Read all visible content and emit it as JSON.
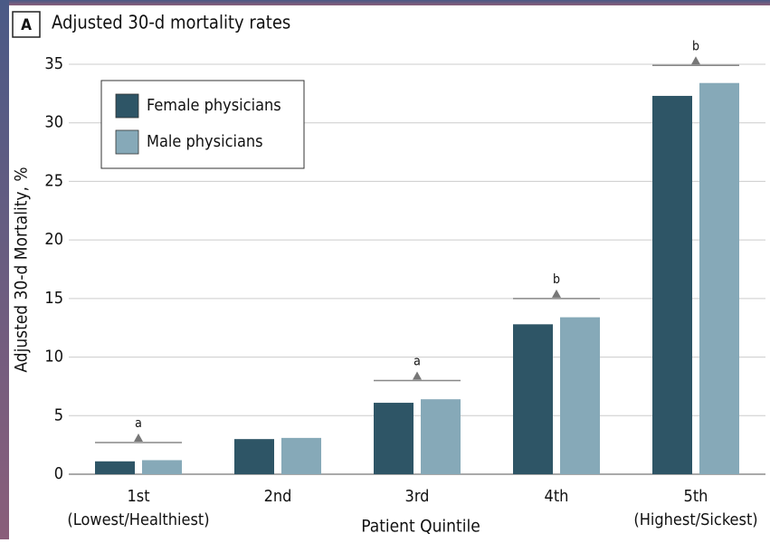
{
  "chart_data": {
    "type": "bar",
    "panel_label": "A",
    "title": "Adjusted 30-d mortality rates",
    "ylabel": "Adjusted 30-d Mortality, %",
    "xlabel": "Patient Quintile",
    "categories": [
      "1st",
      "2nd",
      "3rd",
      "4th",
      "5th"
    ],
    "category_notes": [
      "(Lowest/Healthiest)",
      null,
      null,
      null,
      "(Highest/Sickest)"
    ],
    "series": [
      {
        "name": "Female physicians",
        "color": "#2e5566",
        "values": [
          1.1,
          3.0,
          6.1,
          12.8,
          32.3
        ]
      },
      {
        "name": "Male physicians",
        "color": "#86a9b8",
        "values": [
          1.2,
          3.1,
          6.4,
          13.4,
          33.4
        ]
      }
    ],
    "annotations": [
      {
        "x": "1st",
        "y": 2.7,
        "label": "a"
      },
      {
        "x": "3rd",
        "y": 8.0,
        "label": "a"
      },
      {
        "x": "4th",
        "y": 15.0,
        "label": "b"
      },
      {
        "x": "5th",
        "y": 34.9,
        "label": "b"
      }
    ],
    "ylim": [
      0,
      35
    ],
    "yticks": [
      0,
      5,
      10,
      15,
      20,
      25,
      30,
      35
    ],
    "grid": true,
    "legend": "upper left"
  }
}
